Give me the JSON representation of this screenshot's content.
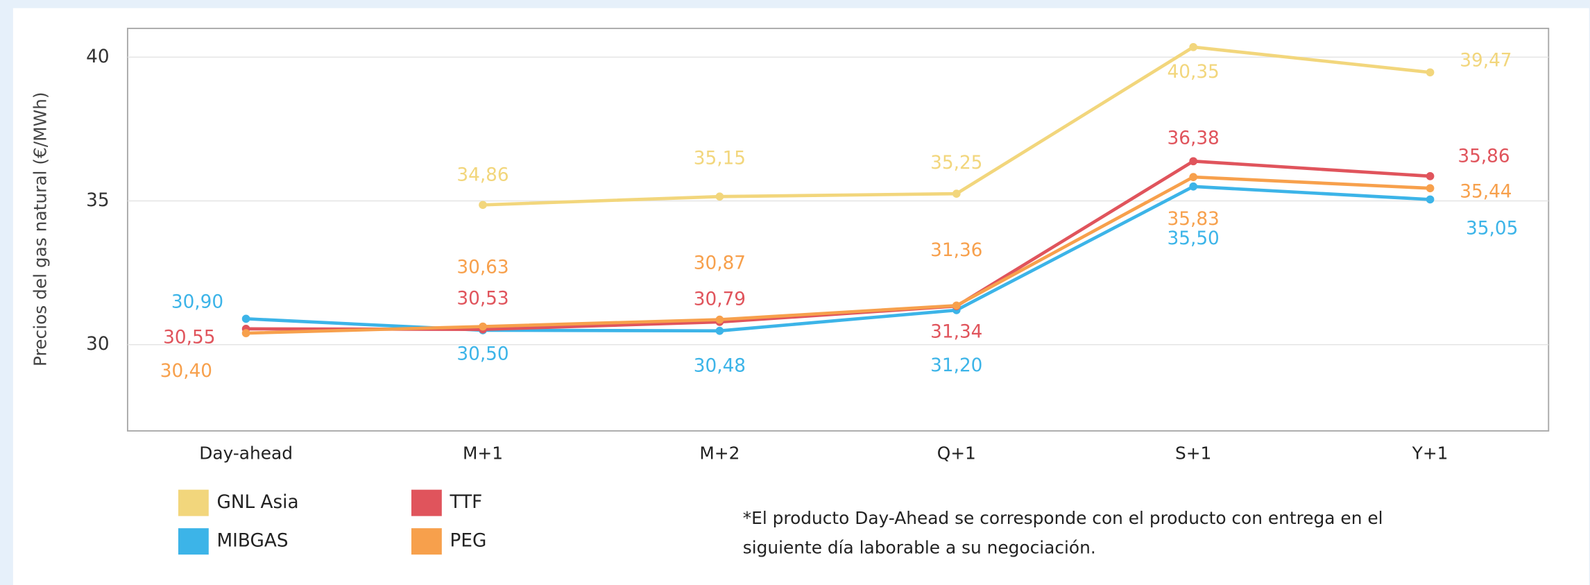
{
  "chart_data": {
    "type": "line",
    "y_label": "Precios del gas natural (€/MWh)",
    "categories": [
      "Day-ahead",
      "M+1",
      "M+2",
      "Q+1",
      "S+1",
      "Y+1"
    ],
    "series": [
      {
        "name": "GNL Asia",
        "color": "#f2d67c",
        "values": [
          null,
          34.86,
          35.15,
          35.25,
          40.35,
          39.47
        ],
        "value_labels": [
          null,
          "34,86",
          "35,15",
          "35,25",
          "40,35",
          "39,47"
        ]
      },
      {
        "name": "MIBGAS",
        "color": "#3cb4e8",
        "values": [
          30.9,
          30.5,
          30.48,
          31.2,
          35.5,
          35.05
        ],
        "value_labels": [
          "30,90",
          "30,50",
          "30,48",
          "31,20",
          "35,50",
          "35,05"
        ]
      },
      {
        "name": "TTF",
        "color": "#e0545c",
        "values": [
          30.55,
          30.53,
          30.79,
          31.34,
          36.38,
          35.86
        ],
        "value_labels": [
          "30,55",
          "30,53",
          "30,79",
          "31,34",
          "36,38",
          "35,86"
        ]
      },
      {
        "name": "PEG",
        "color": "#f7a04c",
        "values": [
          30.4,
          30.63,
          30.87,
          31.36,
          35.83,
          35.44
        ],
        "value_labels": [
          "30,40",
          "30,63",
          "30,87",
          "31,36",
          "35,83",
          "35,44"
        ]
      }
    ],
    "ylim": [
      27,
      41
    ],
    "yticks": [
      30,
      35,
      40
    ],
    "grid": true,
    "note": [
      "*El producto Day-Ahead se corresponde con el producto con entrega en el",
      "siguiente día laborable a su negociación."
    ]
  }
}
